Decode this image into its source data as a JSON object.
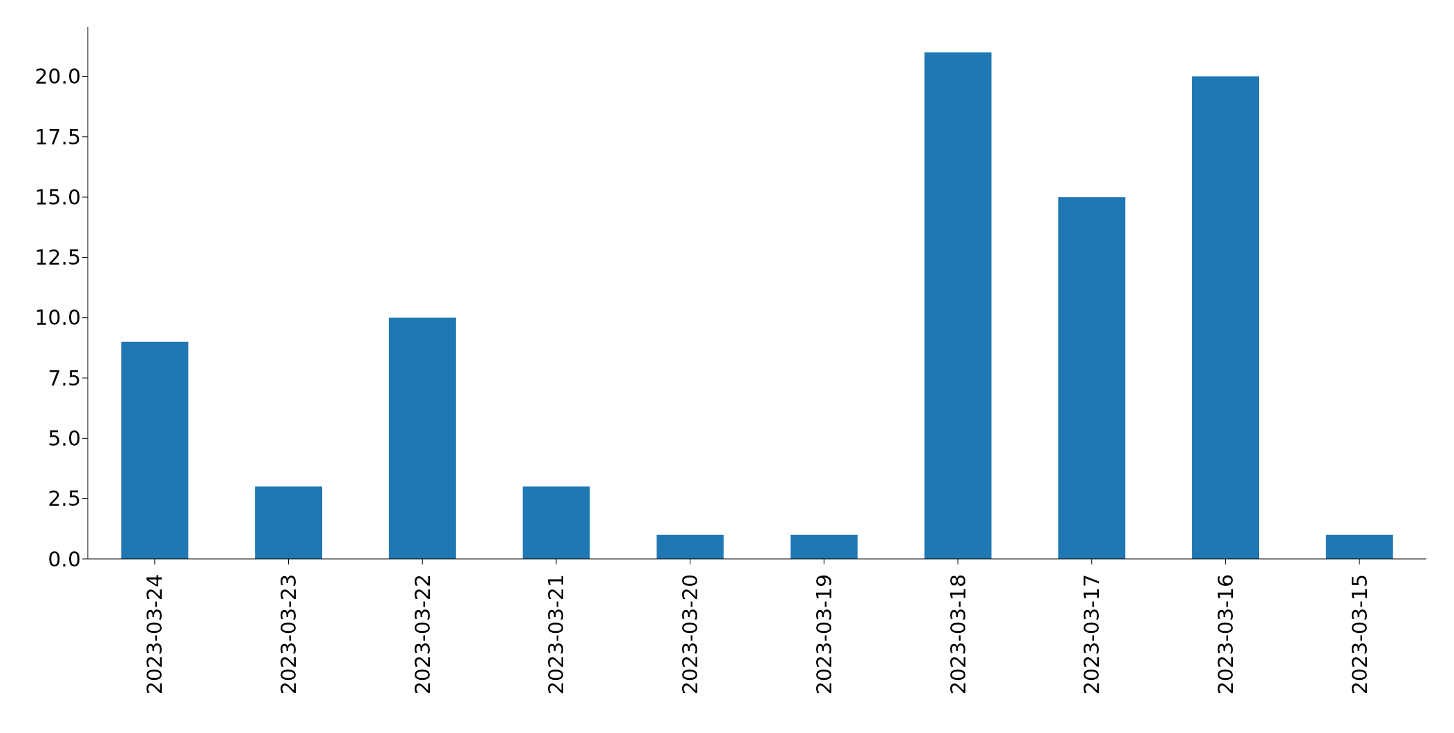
{
  "chart_data": {
    "type": "bar",
    "categories": [
      "2023-03-24",
      "2023-03-23",
      "2023-03-22",
      "2023-03-21",
      "2023-03-20",
      "2023-03-19",
      "2023-03-18",
      "2023-03-17",
      "2023-03-16",
      "2023-03-15"
    ],
    "values": [
      9,
      3,
      10,
      3,
      1,
      1,
      21,
      15,
      20,
      1
    ],
    "color": "#1f77b4",
    "ylim": [
      0,
      22.05
    ],
    "yticks": [
      {
        "value": 0,
        "label": "0.0"
      },
      {
        "value": 2.5,
        "label": "2.5"
      },
      {
        "value": 5,
        "label": "5.0"
      },
      {
        "value": 7.5,
        "label": "7.5"
      },
      {
        "value": 10,
        "label": "10.0"
      },
      {
        "value": 12.5,
        "label": "12.5"
      },
      {
        "value": 15,
        "label": "15.0"
      },
      {
        "value": 17.5,
        "label": "17.5"
      },
      {
        "value": 20,
        "label": "20.0"
      }
    ]
  }
}
